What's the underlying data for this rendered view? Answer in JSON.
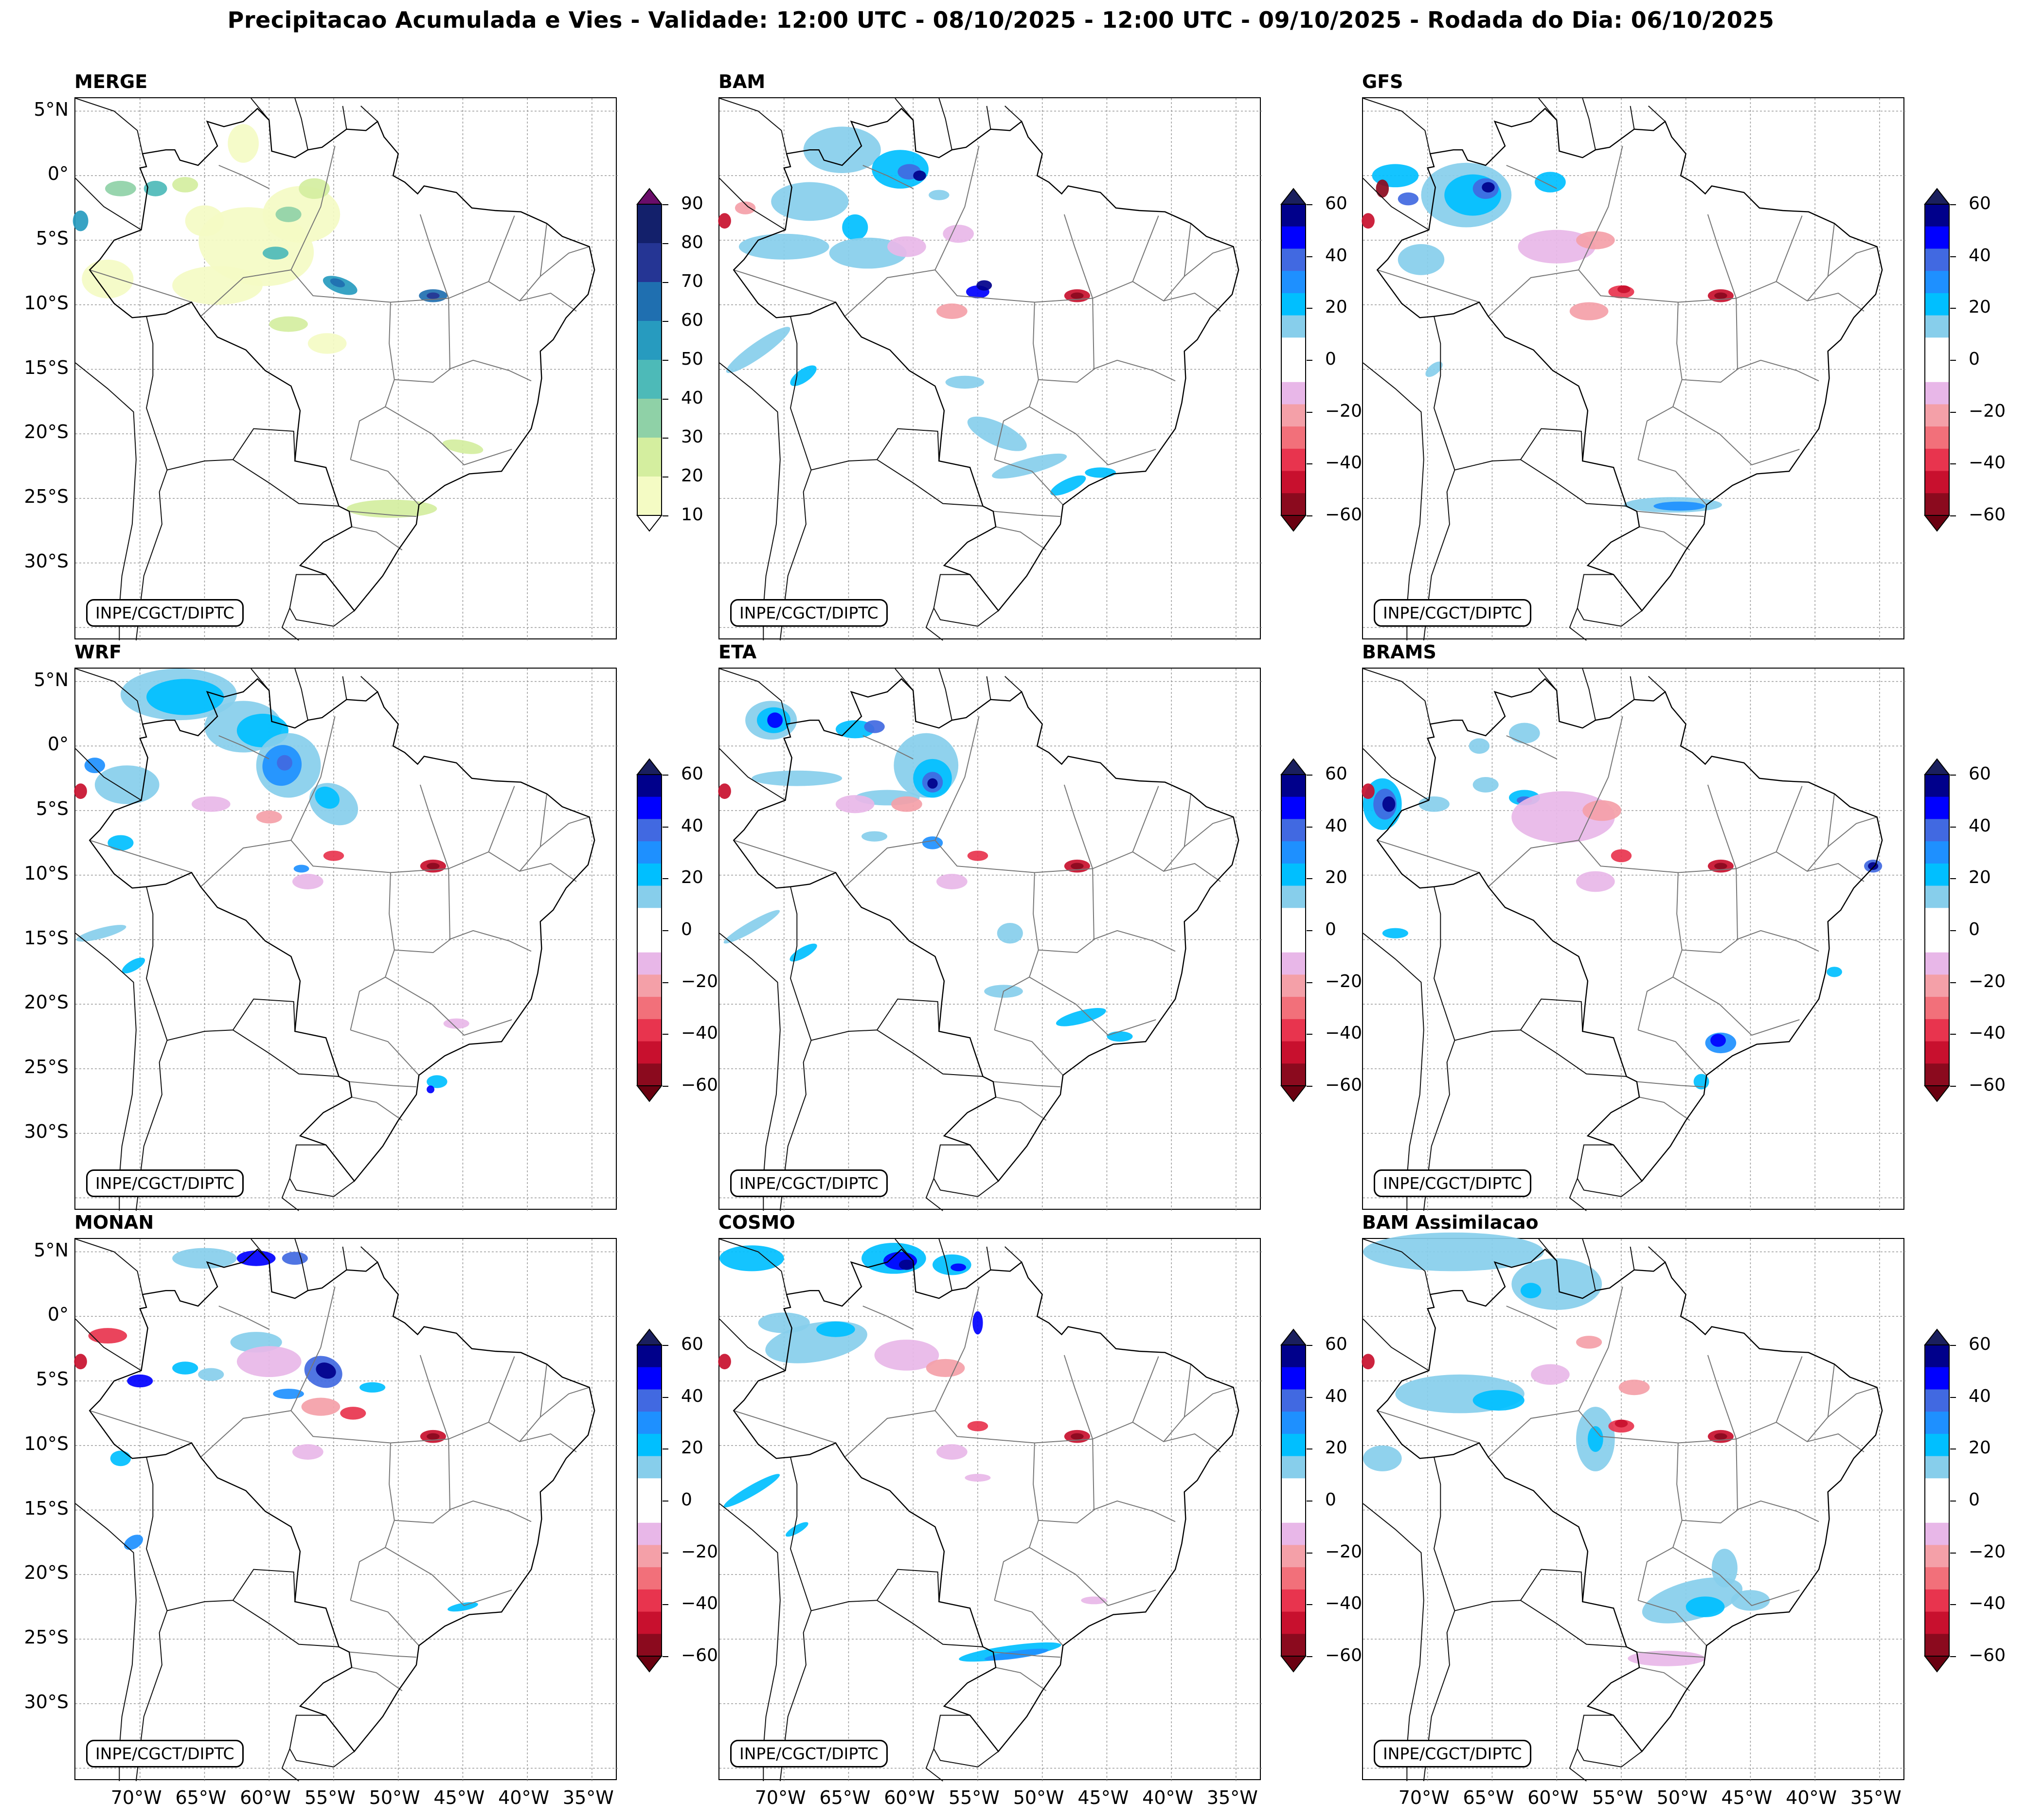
{
  "title": "Precipitacao Acumulada e Vies - Validade: 12:00 UTC - 08/10/2025 - 12:00 UTC - 09/10/2025 - Rodada do Dia: 06/10/2025",
  "credit": "INPE/CGCT/DIPTC",
  "lat_labels": [
    "5°N",
    "0°",
    "5°S",
    "10°S",
    "15°S",
    "20°S",
    "25°S",
    "30°S"
  ],
  "lon_labels": [
    "70°W",
    "65°W",
    "60°W",
    "55°W",
    "50°W",
    "45°W",
    "40°W",
    "35°W"
  ],
  "colors": {
    "merge": [
      "#f4fbc4",
      "#d4ee9f",
      "#8fd1a7",
      "#4dbab8",
      "#279bbf",
      "#1f6fb0",
      "#253594",
      "#13206b"
    ],
    "bias_pos": [
      "#87ceeb",
      "#00bfff",
      "#1e90ff",
      "#4169e1",
      "#0000ff",
      "#00008b"
    ],
    "bias_neg": [
      "#e8b7e8",
      "#f4a0a8",
      "#f2707a",
      "#e8344e",
      "#c8102e",
      "#8b0a1e"
    ]
  },
  "panels": [
    {
      "name": "MERGE",
      "type": "precip",
      "cbar_ticks": [
        "90",
        "80",
        "70",
        "60",
        "50",
        "40",
        "30",
        "20",
        "10"
      ]
    },
    {
      "name": "BAM",
      "type": "bias",
      "cbar_ticks": [
        "60",
        "40",
        "20",
        "0",
        "−20",
        "−40",
        "−60"
      ]
    },
    {
      "name": "GFS",
      "type": "bias",
      "cbar_ticks": [
        "60",
        "40",
        "20",
        "0",
        "−20",
        "−40",
        "−60"
      ]
    },
    {
      "name": "WRF",
      "type": "bias",
      "cbar_ticks": [
        "60",
        "40",
        "20",
        "0",
        "−20",
        "−40",
        "−60"
      ]
    },
    {
      "name": "ETA",
      "type": "bias",
      "cbar_ticks": [
        "60",
        "40",
        "20",
        "0",
        "−20",
        "−40",
        "−60"
      ]
    },
    {
      "name": "BRAMS",
      "type": "bias",
      "cbar_ticks": [
        "60",
        "40",
        "20",
        "0",
        "−20",
        "−40",
        "−60"
      ]
    },
    {
      "name": "MONAN",
      "type": "bias",
      "cbar_ticks": [
        "60",
        "40",
        "20",
        "0",
        "−20",
        "−40",
        "−60"
      ]
    },
    {
      "name": "COSMO",
      "type": "bias",
      "cbar_ticks": [
        "60",
        "40",
        "20",
        "0",
        "−20",
        "−40",
        "−60"
      ]
    },
    {
      "name": "BAM Assimilacao",
      "type": "bias",
      "cbar_ticks": [
        "60",
        "40",
        "20",
        "0",
        "−20",
        "−40",
        "−60"
      ]
    }
  ]
}
